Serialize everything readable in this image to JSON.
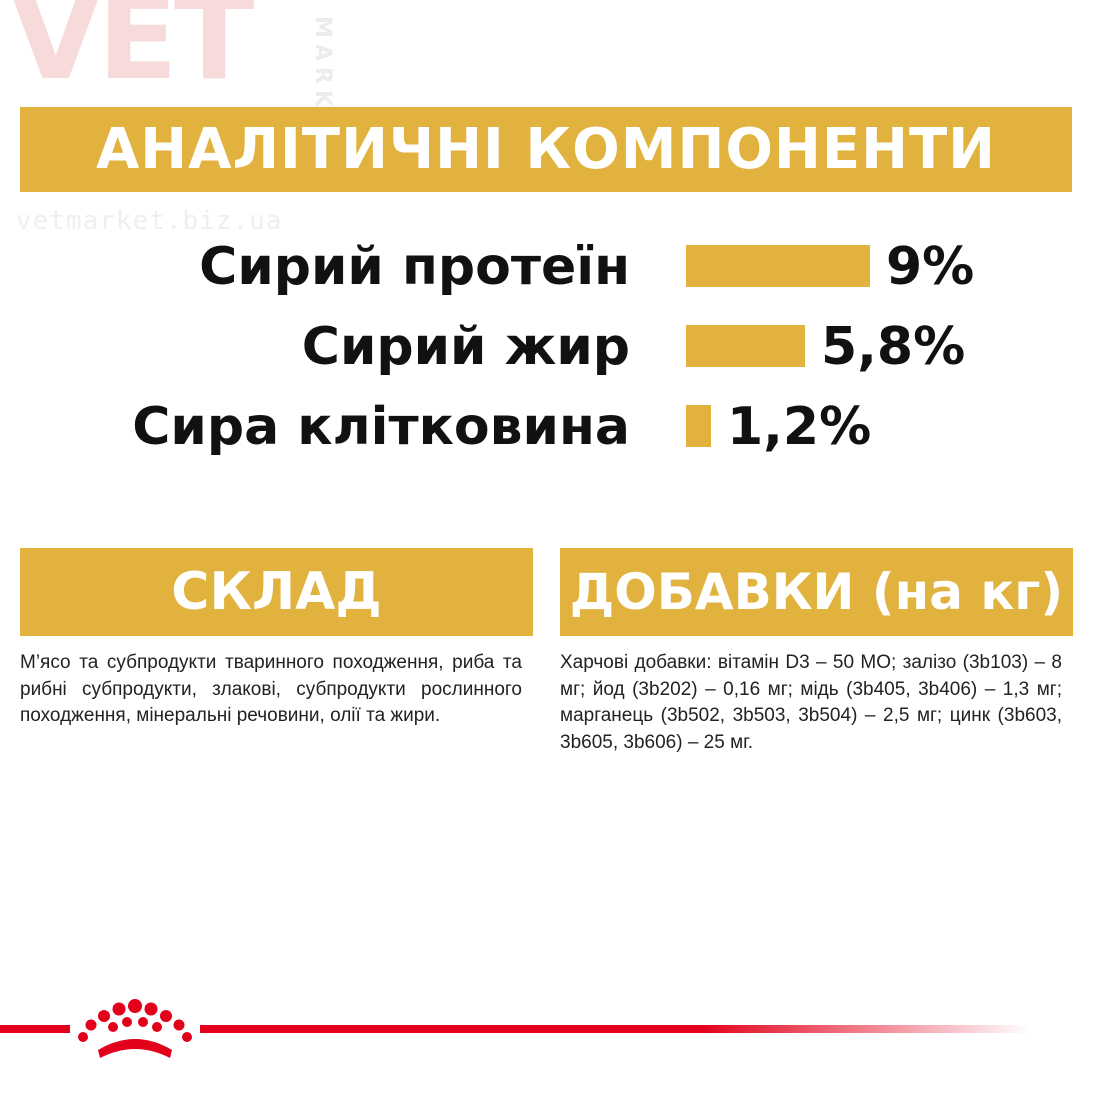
{
  "watermark": {
    "logo_text": "VET",
    "market_text": "MARKET",
    "url": "vetmarket.biz.ua"
  },
  "analytic": {
    "title": "АНАЛІТИЧНІ КОМПОНЕНТИ",
    "rows": [
      {
        "label": "Сирий протеїн",
        "value": "9%",
        "percent": 9.0
      },
      {
        "label": "Сирий жир",
        "value": "5,8%",
        "percent": 5.8
      },
      {
        "label": "Сира клітковина",
        "value": "1,2%",
        "percent": 1.2
      }
    ]
  },
  "composition": {
    "title": "СКЛАД",
    "text": "М’ясо та субпродукти тваринного походження, риба та рибні субпродукти, злакові, субпродукти рослинного походження, мінеральні речовини, олії та жири."
  },
  "additives": {
    "title": "ДОБАВКИ (на кг)",
    "text": "Харчові добавки: вітамін D3 – 50 МО; залізо (3b103) – 8 мг; йод (3b202) – 0,16 мг; мідь (3b405, 3b406) – 1,3 мг; марганець (3b502, 3b503, 3b504) – 2,5 мг; цинк (3b603, 3b605, 3b606) – 25 мг."
  },
  "colors": {
    "accent_gold": "#e1b23e",
    "brand_red": "#e2001a",
    "text": "#111111"
  },
  "icons": {
    "brand_logo": "royal-canin-crown-icon"
  }
}
